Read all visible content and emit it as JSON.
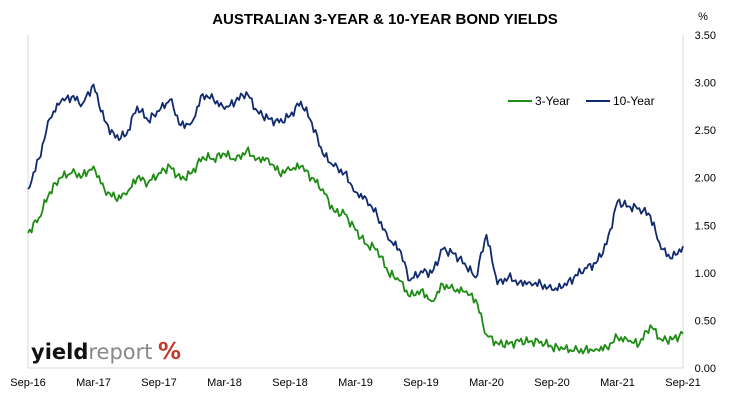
{
  "chart_data": {
    "type": "line",
    "title": "AUSTRALIAN 3-YEAR & 10-YEAR BOND YIELDS",
    "ylabel": "%",
    "xlabel": "",
    "ylim": [
      0,
      3.5
    ],
    "yticks": [
      "0.00",
      "0.50",
      "1.00",
      "1.50",
      "2.00",
      "2.50",
      "3.00",
      "3.50"
    ],
    "xlim": [
      "2016-09",
      "2021-09"
    ],
    "xticks": [
      "Sep-16",
      "Mar-17",
      "Sep-17",
      "Mar-18",
      "Sep-18",
      "Mar-19",
      "Sep-19",
      "Mar-20",
      "Sep-20",
      "Mar-21",
      "Sep-21"
    ],
    "legend": "top-right",
    "grid": false,
    "series": [
      {
        "name": "3-Year",
        "color": "#1e8c14",
        "x": [
          "2016-09",
          "2016-10",
          "2016-11",
          "2016-12",
          "2017-01",
          "2017-02",
          "2017-03",
          "2017-04",
          "2017-05",
          "2017-06",
          "2017-07",
          "2017-08",
          "2017-09",
          "2017-10",
          "2017-11",
          "2017-12",
          "2018-01",
          "2018-02",
          "2018-03",
          "2018-04",
          "2018-05",
          "2018-06",
          "2018-07",
          "2018-08",
          "2018-09",
          "2018-10",
          "2018-11",
          "2018-12",
          "2019-01",
          "2019-02",
          "2019-03",
          "2019-04",
          "2019-05",
          "2019-06",
          "2019-07",
          "2019-08",
          "2019-09",
          "2019-10",
          "2019-11",
          "2019-12",
          "2020-01",
          "2020-02",
          "2020-03",
          "2020-04",
          "2020-05",
          "2020-06",
          "2020-07",
          "2020-08",
          "2020-09",
          "2020-10",
          "2020-11",
          "2020-12",
          "2021-01",
          "2021-02",
          "2021-03",
          "2021-04",
          "2021-05",
          "2021-06",
          "2021-07",
          "2021-08",
          "2021-09"
        ],
        "values": [
          1.42,
          1.58,
          1.85,
          2.0,
          2.05,
          2.02,
          2.12,
          1.88,
          1.78,
          1.82,
          2.0,
          1.95,
          2.05,
          2.12,
          1.98,
          2.05,
          2.22,
          2.2,
          2.25,
          2.18,
          2.28,
          2.2,
          2.2,
          2.05,
          2.08,
          2.12,
          2.0,
          1.88,
          1.65,
          1.62,
          1.45,
          1.3,
          1.25,
          1.0,
          0.92,
          0.75,
          0.82,
          0.7,
          0.88,
          0.82,
          0.8,
          0.72,
          0.35,
          0.26,
          0.25,
          0.28,
          0.28,
          0.28,
          0.22,
          0.2,
          0.18,
          0.19,
          0.2,
          0.22,
          0.32,
          0.28,
          0.25,
          0.45,
          0.3,
          0.3,
          0.36
        ]
      },
      {
        "name": "10-Year",
        "color": "#102a6e",
        "x": [
          "2016-09",
          "2016-10",
          "2016-11",
          "2016-12",
          "2017-01",
          "2017-02",
          "2017-03",
          "2017-04",
          "2017-05",
          "2017-06",
          "2017-07",
          "2017-08",
          "2017-09",
          "2017-10",
          "2017-11",
          "2017-12",
          "2018-01",
          "2018-02",
          "2018-03",
          "2018-04",
          "2018-05",
          "2018-06",
          "2018-07",
          "2018-08",
          "2018-09",
          "2018-10",
          "2018-11",
          "2018-12",
          "2019-01",
          "2019-02",
          "2019-03",
          "2019-04",
          "2019-05",
          "2019-06",
          "2019-07",
          "2019-08",
          "2019-09",
          "2019-10",
          "2019-11",
          "2019-12",
          "2020-01",
          "2020-02",
          "2020-03",
          "2020-04",
          "2020-05",
          "2020-06",
          "2020-07",
          "2020-08",
          "2020-09",
          "2020-10",
          "2020-11",
          "2020-12",
          "2021-01",
          "2021-02",
          "2021-03",
          "2021-04",
          "2021-05",
          "2021-06",
          "2021-07",
          "2021-08",
          "2021-09"
        ],
        "values": [
          1.88,
          2.2,
          2.62,
          2.8,
          2.85,
          2.78,
          2.98,
          2.6,
          2.42,
          2.45,
          2.75,
          2.6,
          2.7,
          2.82,
          2.55,
          2.58,
          2.88,
          2.82,
          2.72,
          2.8,
          2.9,
          2.7,
          2.62,
          2.58,
          2.65,
          2.8,
          2.58,
          2.25,
          2.12,
          2.05,
          1.85,
          1.78,
          1.6,
          1.35,
          1.25,
          0.92,
          1.02,
          1.0,
          1.25,
          1.2,
          1.1,
          0.95,
          1.4,
          0.88,
          0.95,
          0.9,
          0.9,
          0.88,
          0.82,
          0.85,
          0.95,
          1.05,
          1.1,
          1.3,
          1.75,
          1.7,
          1.68,
          1.6,
          1.25,
          1.15,
          1.28
        ]
      }
    ]
  },
  "watermark": {
    "part1": "yield",
    "part2": "report",
    "symbol": "%",
    "colors": {
      "dark": "#111111",
      "grey": "#888888",
      "red": "#c0392b",
      "green": "#2e9e2e"
    }
  }
}
